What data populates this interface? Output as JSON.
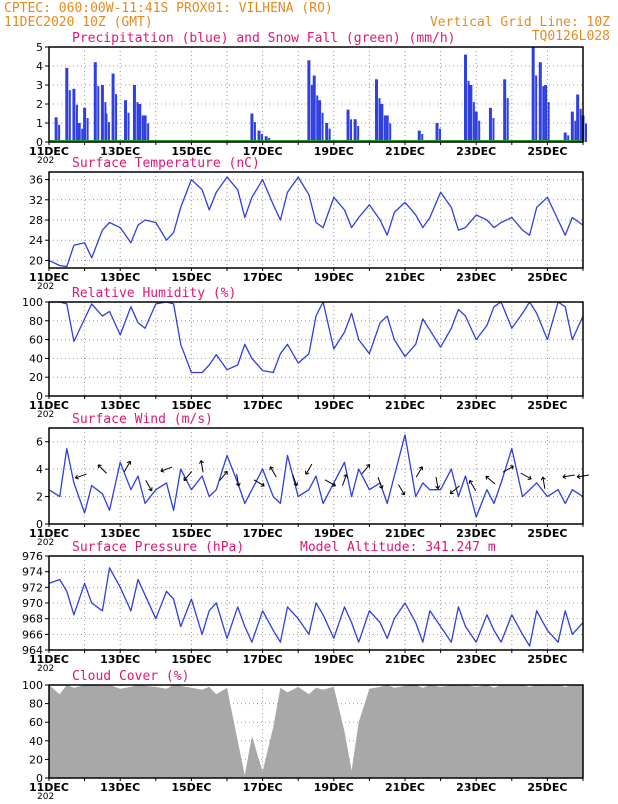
{
  "header": {
    "line1_left": "CPTEC:  060:00W-11:41S  PROX01: VILHENA (RO)",
    "line2_left": "11DEC2020 10Z (GMT)",
    "line2_right": "Vertical Grid Line: 10Z",
    "line3_right": "TQ0126L028"
  },
  "colors": {
    "header": "#e58a1f",
    "panel_title": "#e0157a",
    "series": "#2f3fe0",
    "snow": "#1aa01a",
    "cloud": "#a8a8a8",
    "axis": "#000000",
    "grid": "#9a9a9a"
  },
  "x_axis": {
    "labels": [
      "11DEC",
      "13DEC",
      "15DEC",
      "17DEC",
      "19DEC",
      "21DEC",
      "23DEC",
      "25DEC"
    ],
    "start_day": 11,
    "end_day": 26,
    "year_fragment": "202"
  },
  "chart_data": [
    {
      "id": "precip",
      "type": "bar",
      "title": "Precipitation (blue) and Snow Fall (green) (mm/h)",
      "ylim": [
        0,
        5
      ],
      "yticks": [
        "0",
        "1",
        "2",
        "3",
        "4",
        "5"
      ],
      "series": [
        {
          "name": "Precipitation",
          "x": [
            11.2,
            11.5,
            11.7,
            11.85,
            12.0,
            12.3,
            12.5,
            12.6,
            12.8,
            13.15,
            13.4,
            13.55,
            13.7,
            16.7,
            16.9,
            17.1,
            18.3,
            18.45,
            18.6,
            18.8,
            19.4,
            19.6,
            20.2,
            20.35,
            20.5,
            21.4,
            21.9,
            22.7,
            22.85,
            23.0,
            23.4,
            23.8,
            24.6,
            24.8,
            24.95,
            25.5,
            25.7,
            25.85,
            26.0
          ],
          "values": [
            1.3,
            3.9,
            2.8,
            1.0,
            1.8,
            4.2,
            3.0,
            1.5,
            3.6,
            2.2,
            3.0,
            2.0,
            1.4,
            1.5,
            0.6,
            0.3,
            4.3,
            3.5,
            2.2,
            1.0,
            1.7,
            1.2,
            3.3,
            2.0,
            1.4,
            0.6,
            1.0,
            4.6,
            3.0,
            1.6,
            1.8,
            3.3,
            5.0,
            4.2,
            3.0,
            0.5,
            1.6,
            2.5,
            1.4
          ]
        },
        {
          "name": "Snow Fall",
          "values": [
            0,
            0
          ]
        }
      ]
    },
    {
      "id": "temp",
      "type": "line",
      "title": "Surface Temperature (nC)",
      "ylim": [
        18.5,
        37.5
      ],
      "yticks": [
        "20",
        "24",
        "28",
        "32",
        "36"
      ],
      "x": [
        11.0,
        11.3,
        11.5,
        11.7,
        12.0,
        12.2,
        12.5,
        12.7,
        13.0,
        13.3,
        13.5,
        13.7,
        14.0,
        14.3,
        14.5,
        14.7,
        15.0,
        15.3,
        15.5,
        15.7,
        16.0,
        16.3,
        16.5,
        16.7,
        17.0,
        17.3,
        17.5,
        17.7,
        18.0,
        18.3,
        18.5,
        18.7,
        19.0,
        19.3,
        19.5,
        19.7,
        20.0,
        20.3,
        20.5,
        20.7,
        21.0,
        21.3,
        21.5,
        21.7,
        22.0,
        22.3,
        22.5,
        22.7,
        23.0,
        23.3,
        23.5,
        23.7,
        24.0,
        24.3,
        24.5,
        24.7,
        25.0,
        25.3,
        25.5,
        25.7,
        26.0
      ],
      "values": [
        20.0,
        19.0,
        18.8,
        23.0,
        23.5,
        20.5,
        26.0,
        27.5,
        26.5,
        23.5,
        27.0,
        28.0,
        27.5,
        24.0,
        25.5,
        30.5,
        36.0,
        34.0,
        30.0,
        33.5,
        36.5,
        34.0,
        28.5,
        32.5,
        36.0,
        31.0,
        28.0,
        33.5,
        36.5,
        33.0,
        27.5,
        26.5,
        32.5,
        30.0,
        26.5,
        28.5,
        31.0,
        28.0,
        25.0,
        29.5,
        31.5,
        29.0,
        26.5,
        28.5,
        33.5,
        30.5,
        26.0,
        26.5,
        29.0,
        28.0,
        26.5,
        27.5,
        28.5,
        26.0,
        25.0,
        30.5,
        32.5,
        28.0,
        25.0,
        28.5,
        27.0
      ]
    },
    {
      "id": "rh",
      "type": "line",
      "title": "Relative Humidity (%)",
      "ylim": [
        0,
        100
      ],
      "yticks": [
        "0",
        "20",
        "40",
        "60",
        "80",
        "100"
      ],
      "x": [
        11.0,
        11.3,
        11.5,
        11.7,
        12.0,
        12.2,
        12.5,
        12.7,
        13.0,
        13.3,
        13.5,
        13.7,
        14.0,
        14.3,
        14.5,
        14.7,
        15.0,
        15.3,
        15.5,
        15.7,
        16.0,
        16.3,
        16.5,
        16.7,
        17.0,
        17.3,
        17.5,
        17.7,
        18.0,
        18.3,
        18.5,
        18.7,
        19.0,
        19.3,
        19.5,
        19.7,
        20.0,
        20.3,
        20.5,
        20.7,
        21.0,
        21.3,
        21.5,
        21.7,
        22.0,
        22.3,
        22.5,
        22.7,
        23.0,
        23.3,
        23.5,
        23.7,
        24.0,
        24.3,
        24.5,
        24.7,
        25.0,
        25.3,
        25.5,
        25.7,
        26.0
      ],
      "values": [
        100,
        100,
        98,
        58,
        82,
        98,
        85,
        90,
        65,
        95,
        78,
        72,
        98,
        100,
        98,
        55,
        25,
        25,
        33,
        44,
        28,
        33,
        55,
        40,
        27,
        25,
        45,
        55,
        35,
        45,
        85,
        100,
        50,
        68,
        88,
        60,
        45,
        78,
        85,
        60,
        42,
        55,
        82,
        70,
        52,
        72,
        92,
        85,
        60,
        75,
        95,
        100,
        72,
        88,
        100,
        88,
        60,
        100,
        95,
        60,
        85
      ]
    },
    {
      "id": "wind",
      "type": "line",
      "title": "Surface Wind (m/s)",
      "ylim": [
        0,
        7
      ],
      "yticks": [
        "0",
        "2",
        "4",
        "6"
      ],
      "x": [
        11.0,
        11.3,
        11.5,
        11.7,
        12.0,
        12.2,
        12.5,
        12.7,
        13.0,
        13.3,
        13.5,
        13.7,
        14.0,
        14.3,
        14.5,
        14.7,
        15.0,
        15.3,
        15.5,
        15.7,
        16.0,
        16.3,
        16.5,
        16.7,
        17.0,
        17.3,
        17.5,
        17.7,
        18.0,
        18.3,
        18.5,
        18.7,
        19.0,
        19.3,
        19.5,
        19.7,
        20.0,
        20.3,
        20.5,
        20.7,
        21.0,
        21.3,
        21.5,
        21.7,
        22.0,
        22.3,
        22.5,
        22.7,
        23.0,
        23.3,
        23.5,
        23.7,
        24.0,
        24.3,
        24.5,
        24.7,
        25.0,
        25.3,
        25.5,
        25.7,
        26.0
      ],
      "values": [
        2.5,
        2.0,
        5.5,
        3.0,
        0.8,
        2.8,
        2.2,
        1.0,
        4.5,
        2.5,
        3.5,
        1.5,
        2.5,
        3.0,
        1.0,
        4.0,
        2.5,
        3.5,
        2.0,
        2.5,
        5.0,
        3.0,
        1.5,
        2.5,
        4.0,
        2.0,
        1.5,
        5.0,
        2.0,
        2.5,
        3.5,
        1.5,
        3.0,
        4.5,
        2.0,
        4.0,
        2.5,
        3.0,
        1.5,
        3.5,
        6.5,
        2.0,
        3.0,
        2.5,
        2.5,
        4.0,
        2.0,
        3.5,
        0.5,
        2.5,
        1.5,
        3.0,
        5.5,
        2.0,
        2.5,
        3.0,
        2.0,
        2.5,
        1.5,
        2.5,
        2.0
      ],
      "arrows_x": [
        11.9,
        12.5,
        13.2,
        13.8,
        14.3,
        14.9,
        15.3,
        15.9,
        16.3,
        16.9,
        17.3,
        17.9,
        18.3,
        18.9,
        19.3,
        19.9,
        20.3,
        20.9,
        21.4,
        21.9,
        22.4,
        22.9,
        23.4,
        23.9,
        24.4,
        24.9,
        25.6,
        26.0
      ],
      "arrows_y": [
        3.5,
        4.0,
        4.2,
        2.8,
        4.0,
        3.5,
        4.2,
        3.5,
        3.2,
        3.0,
        3.8,
        3.2,
        4.0,
        3.0,
        3.2,
        4.0,
        3.0,
        2.5,
        3.8,
        3.0,
        2.5,
        2.8,
        3.2,
        4.0,
        3.5,
        3.0,
        3.5,
        3.5
      ],
      "arrows_dir": [
        200,
        135,
        60,
        300,
        200,
        230,
        100,
        50,
        280,
        330,
        120,
        290,
        240,
        330,
        70,
        50,
        290,
        300,
        60,
        280,
        220,
        120,
        140,
        30,
        330,
        100,
        190,
        190
      ]
    },
    {
      "id": "pres",
      "type": "line",
      "title": "Surface Pressure (hPa)",
      "subtitle": "Model Altitude: 341.247 m",
      "ylim": [
        964,
        976
      ],
      "yticks": [
        "964",
        "966",
        "968",
        "970",
        "972",
        "974",
        "976"
      ],
      "x": [
        11.0,
        11.3,
        11.5,
        11.7,
        12.0,
        12.2,
        12.5,
        12.7,
        13.0,
        13.3,
        13.5,
        13.7,
        14.0,
        14.3,
        14.5,
        14.7,
        15.0,
        15.3,
        15.5,
        15.7,
        16.0,
        16.3,
        16.5,
        16.7,
        17.0,
        17.3,
        17.5,
        17.7,
        18.0,
        18.3,
        18.5,
        18.7,
        19.0,
        19.3,
        19.5,
        19.7,
        20.0,
        20.3,
        20.5,
        20.7,
        21.0,
        21.3,
        21.5,
        21.7,
        22.0,
        22.3,
        22.5,
        22.7,
        23.0,
        23.3,
        23.5,
        23.7,
        24.0,
        24.3,
        24.5,
        24.7,
        25.0,
        25.3,
        25.5,
        25.7,
        26.0
      ],
      "values": [
        972.5,
        973.0,
        971.5,
        968.5,
        972.5,
        970.0,
        969.0,
        974.5,
        972.0,
        969.0,
        973.0,
        971.0,
        968.0,
        971.5,
        970.5,
        967.0,
        970.5,
        966.0,
        969.0,
        970.0,
        965.5,
        969.5,
        967.0,
        965.0,
        969.0,
        966.5,
        965.0,
        969.5,
        968.0,
        966.0,
        970.0,
        968.5,
        965.5,
        969.5,
        967.5,
        965.0,
        969.0,
        967.5,
        965.5,
        968.0,
        970.0,
        967.5,
        965.0,
        969.0,
        967.0,
        965.0,
        969.5,
        967.0,
        965.0,
        968.5,
        966.5,
        965.0,
        968.5,
        966.0,
        964.5,
        969.0,
        966.5,
        965.0,
        969.0,
        966.0,
        967.5
      ]
    },
    {
      "id": "cloud",
      "type": "area",
      "title": "Cloud Cover (%)",
      "ylim": [
        0,
        100
      ],
      "yticks": [
        "0",
        "20",
        "40",
        "60",
        "80",
        "100"
      ],
      "x": [
        11.0,
        11.3,
        11.5,
        11.7,
        12.0,
        12.2,
        12.5,
        12.7,
        13.0,
        13.3,
        13.5,
        13.7,
        14.0,
        14.3,
        14.5,
        14.7,
        15.0,
        15.3,
        15.5,
        15.7,
        16.0,
        16.3,
        16.5,
        16.7,
        17.0,
        17.3,
        17.5,
        17.7,
        18.0,
        18.3,
        18.5,
        18.7,
        19.0,
        19.3,
        19.5,
        19.7,
        20.0,
        20.3,
        20.5,
        20.7,
        21.0,
        21.3,
        21.5,
        21.7,
        22.0,
        22.3,
        22.5,
        22.7,
        23.0,
        23.3,
        23.5,
        23.7,
        24.0,
        24.3,
        24.5,
        24.7,
        25.0,
        25.3,
        25.5,
        25.7,
        26.0
      ],
      "values": [
        100,
        90,
        100,
        97,
        100,
        100,
        99,
        100,
        96,
        98,
        100,
        99,
        98,
        96,
        100,
        99,
        97,
        95,
        98,
        90,
        97,
        40,
        3,
        45,
        7,
        55,
        97,
        92,
        98,
        90,
        97,
        95,
        98,
        50,
        8,
        60,
        96,
        98,
        100,
        97,
        99,
        100,
        97,
        100,
        98,
        100,
        99,
        100,
        98,
        100,
        97,
        100,
        99,
        100,
        98,
        100,
        99,
        100,
        98,
        100,
        99
      ]
    }
  ]
}
